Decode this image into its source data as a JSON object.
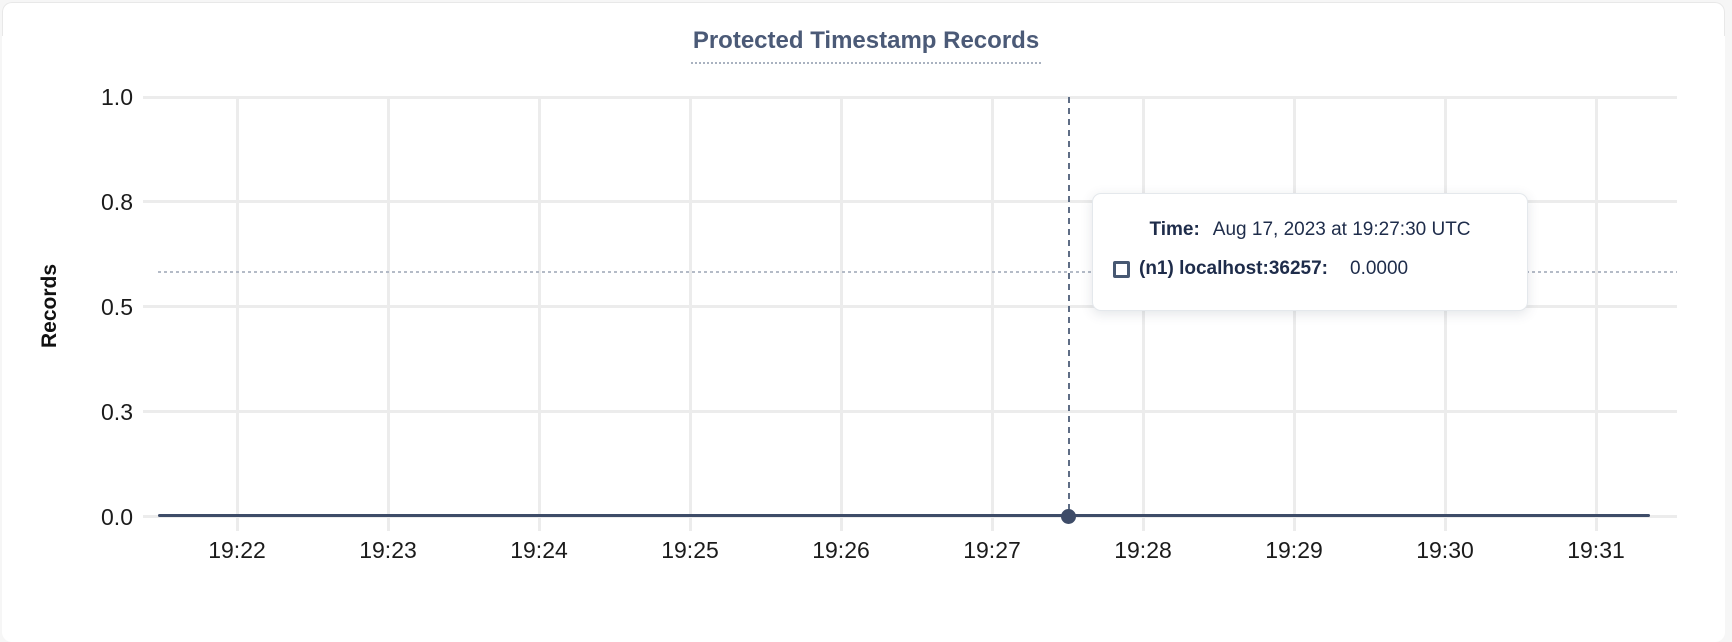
{
  "card": {
    "title": "Protected Timestamp Records"
  },
  "colors": {
    "title": "#4b5a77",
    "axis-text": "#1b1b1b",
    "line": "#3e4c68",
    "grid": "#ececec",
    "crosshair": "#5e6d85",
    "guideline": "#b4bbc7",
    "tooltip-text": "#1e2c4a",
    "swatch": "#475872",
    "border": "#e8e8e8"
  },
  "tooltip": {
    "time_label": "Time:",
    "time_value": "Aug 17, 2023 at 19:27:30 UTC",
    "series_label": "(n1) localhost:36257:",
    "series_value": "0.0000"
  },
  "chart_data": {
    "type": "line",
    "title": "Protected Timestamp Records",
    "xlabel": "",
    "ylabel": "Records",
    "x_ticks": [
      "19:22",
      "19:23",
      "19:24",
      "19:25",
      "19:26",
      "19:27",
      "19:28",
      "19:29",
      "19:30",
      "19:31"
    ],
    "y_ticks": [
      {
        "label": "1.0",
        "value": 1.0
      },
      {
        "label": "0.8",
        "value": 0.75
      },
      {
        "label": "0.5",
        "value": 0.5
      },
      {
        "label": "0.3",
        "value": 0.25
      },
      {
        "label": "0.0",
        "value": 0.0
      }
    ],
    "ylim": [
      0,
      1
    ],
    "grid": true,
    "legend": "none",
    "series": [
      {
        "name": "(n1) localhost:36257",
        "values": [
          0,
          0,
          0,
          0,
          0,
          0,
          0,
          0,
          0,
          0
        ]
      }
    ],
    "hover_point": {
      "time": "19:27:30 UTC",
      "value": 0.0,
      "series": "(n1) localhost:36257"
    }
  }
}
